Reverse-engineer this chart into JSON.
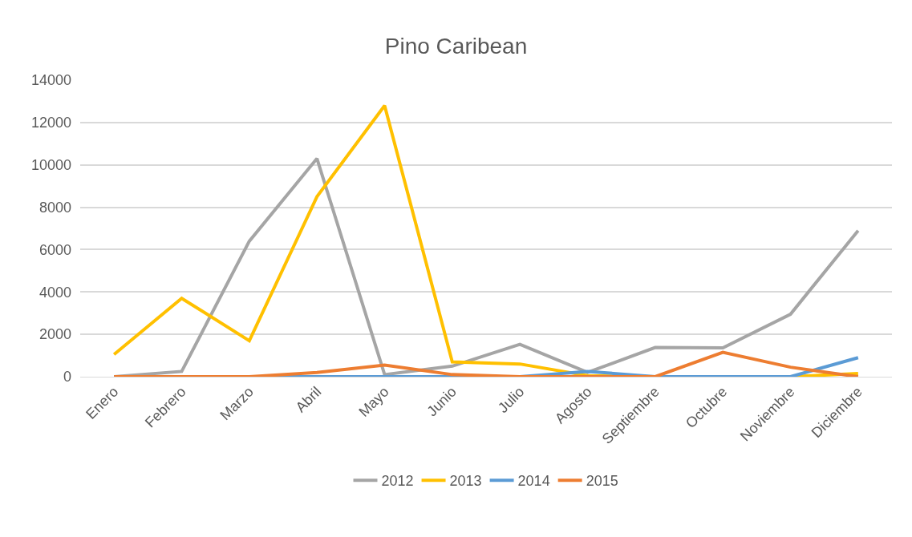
{
  "chart_data": {
    "type": "line",
    "title": "Pino Caribean",
    "categories": [
      "Enero",
      "Febrero",
      "Marzo",
      "Abril",
      "Mayo",
      "Junio",
      "Julio",
      "Agosto",
      "Septiembre",
      "Octubre",
      "Noviembre",
      "Diciembre"
    ],
    "series": [
      {
        "name": "2012",
        "color": "#a5a5a5",
        "values": [
          0,
          250,
          6400,
          10300,
          100,
          500,
          1530,
          200,
          1380,
          1360,
          2950,
          6900
        ]
      },
      {
        "name": "2013",
        "color": "#ffc000",
        "values": [
          1050,
          3700,
          1700,
          8500,
          12800,
          700,
          600,
          50,
          0,
          0,
          0,
          150
        ]
      },
      {
        "name": "2014",
        "color": "#5b9bd5",
        "values": [
          0,
          0,
          0,
          0,
          0,
          0,
          0,
          250,
          0,
          0,
          0,
          900
        ]
      },
      {
        "name": "2015",
        "color": "#ed7d31",
        "values": [
          0,
          0,
          0,
          200,
          550,
          100,
          0,
          0,
          0,
          1150,
          450,
          0
        ]
      }
    ],
    "ylim": [
      0,
      14000
    ],
    "yticks": [
      0,
      2000,
      4000,
      6000,
      8000,
      10000,
      12000,
      14000
    ],
    "grid": "y",
    "legend": "bottom",
    "marker": "none",
    "line_style": "solid"
  }
}
